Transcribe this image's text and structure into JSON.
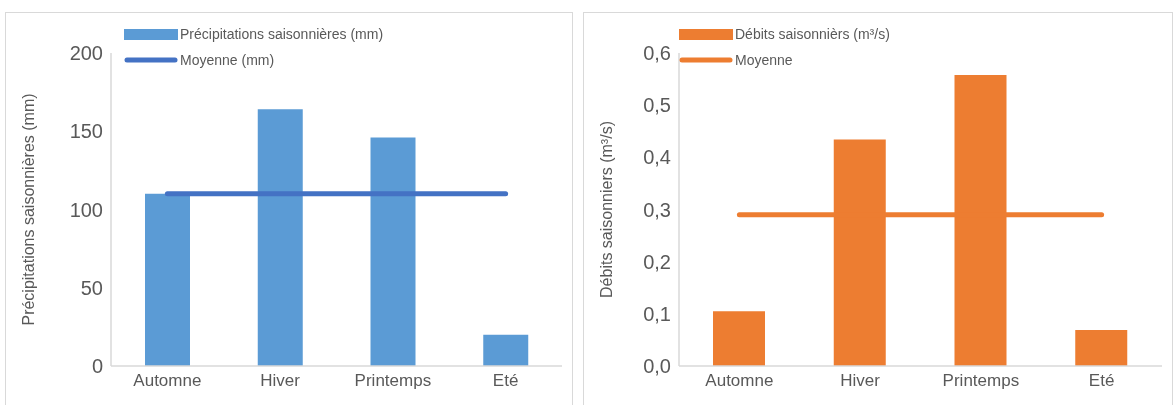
{
  "chart_data": [
    {
      "type": "bar",
      "ylabel": "Précipitations saisonnières (mm)",
      "categories": [
        "Automne",
        "Hiver",
        "Printemps",
        "Eté"
      ],
      "series": [
        {
          "name": "Précipitations saisonnières (mm)",
          "color": "#5b9bd5",
          "values": [
            110,
            164,
            146,
            20
          ]
        },
        {
          "name": "Moyenne (mm)",
          "type": "line",
          "color": "#4472c4",
          "values": [
            110,
            110,
            110,
            110
          ]
        }
      ],
      "ylim": [
        0,
        200
      ],
      "yticks": [
        0,
        50,
        100,
        150,
        200
      ],
      "legend": "top",
      "marker": "none"
    },
    {
      "type": "bar",
      "ylabel": "Débits saisonniers (m³/s)",
      "categories": [
        "Automne",
        "Hiver",
        "Printemps",
        "Eté"
      ],
      "series": [
        {
          "name": "Débits saisonnièrs (m³/s)",
          "color": "#ed7d31",
          "values": [
            0.105,
            0.434,
            0.558,
            0.069
          ]
        },
        {
          "name": "Moyenne",
          "type": "line",
          "color": "#ed7d31",
          "values": [
            0.29,
            0.29,
            0.29,
            0.29
          ]
        }
      ],
      "ylim": [
        0,
        0.6
      ],
      "yticks": [
        {
          "value": 0,
          "label": "0,0"
        },
        {
          "value": 0.1,
          "label": "0,1"
        },
        {
          "value": 0.2,
          "label": "0,2"
        },
        {
          "value": 0.3,
          "label": "0,3"
        },
        {
          "value": 0.4,
          "label": "0,4"
        },
        {
          "value": 0.5,
          "label": "0,5"
        },
        {
          "value": 0.6,
          "label": "0,6"
        }
      ],
      "legend": "top",
      "marker": "none"
    }
  ]
}
